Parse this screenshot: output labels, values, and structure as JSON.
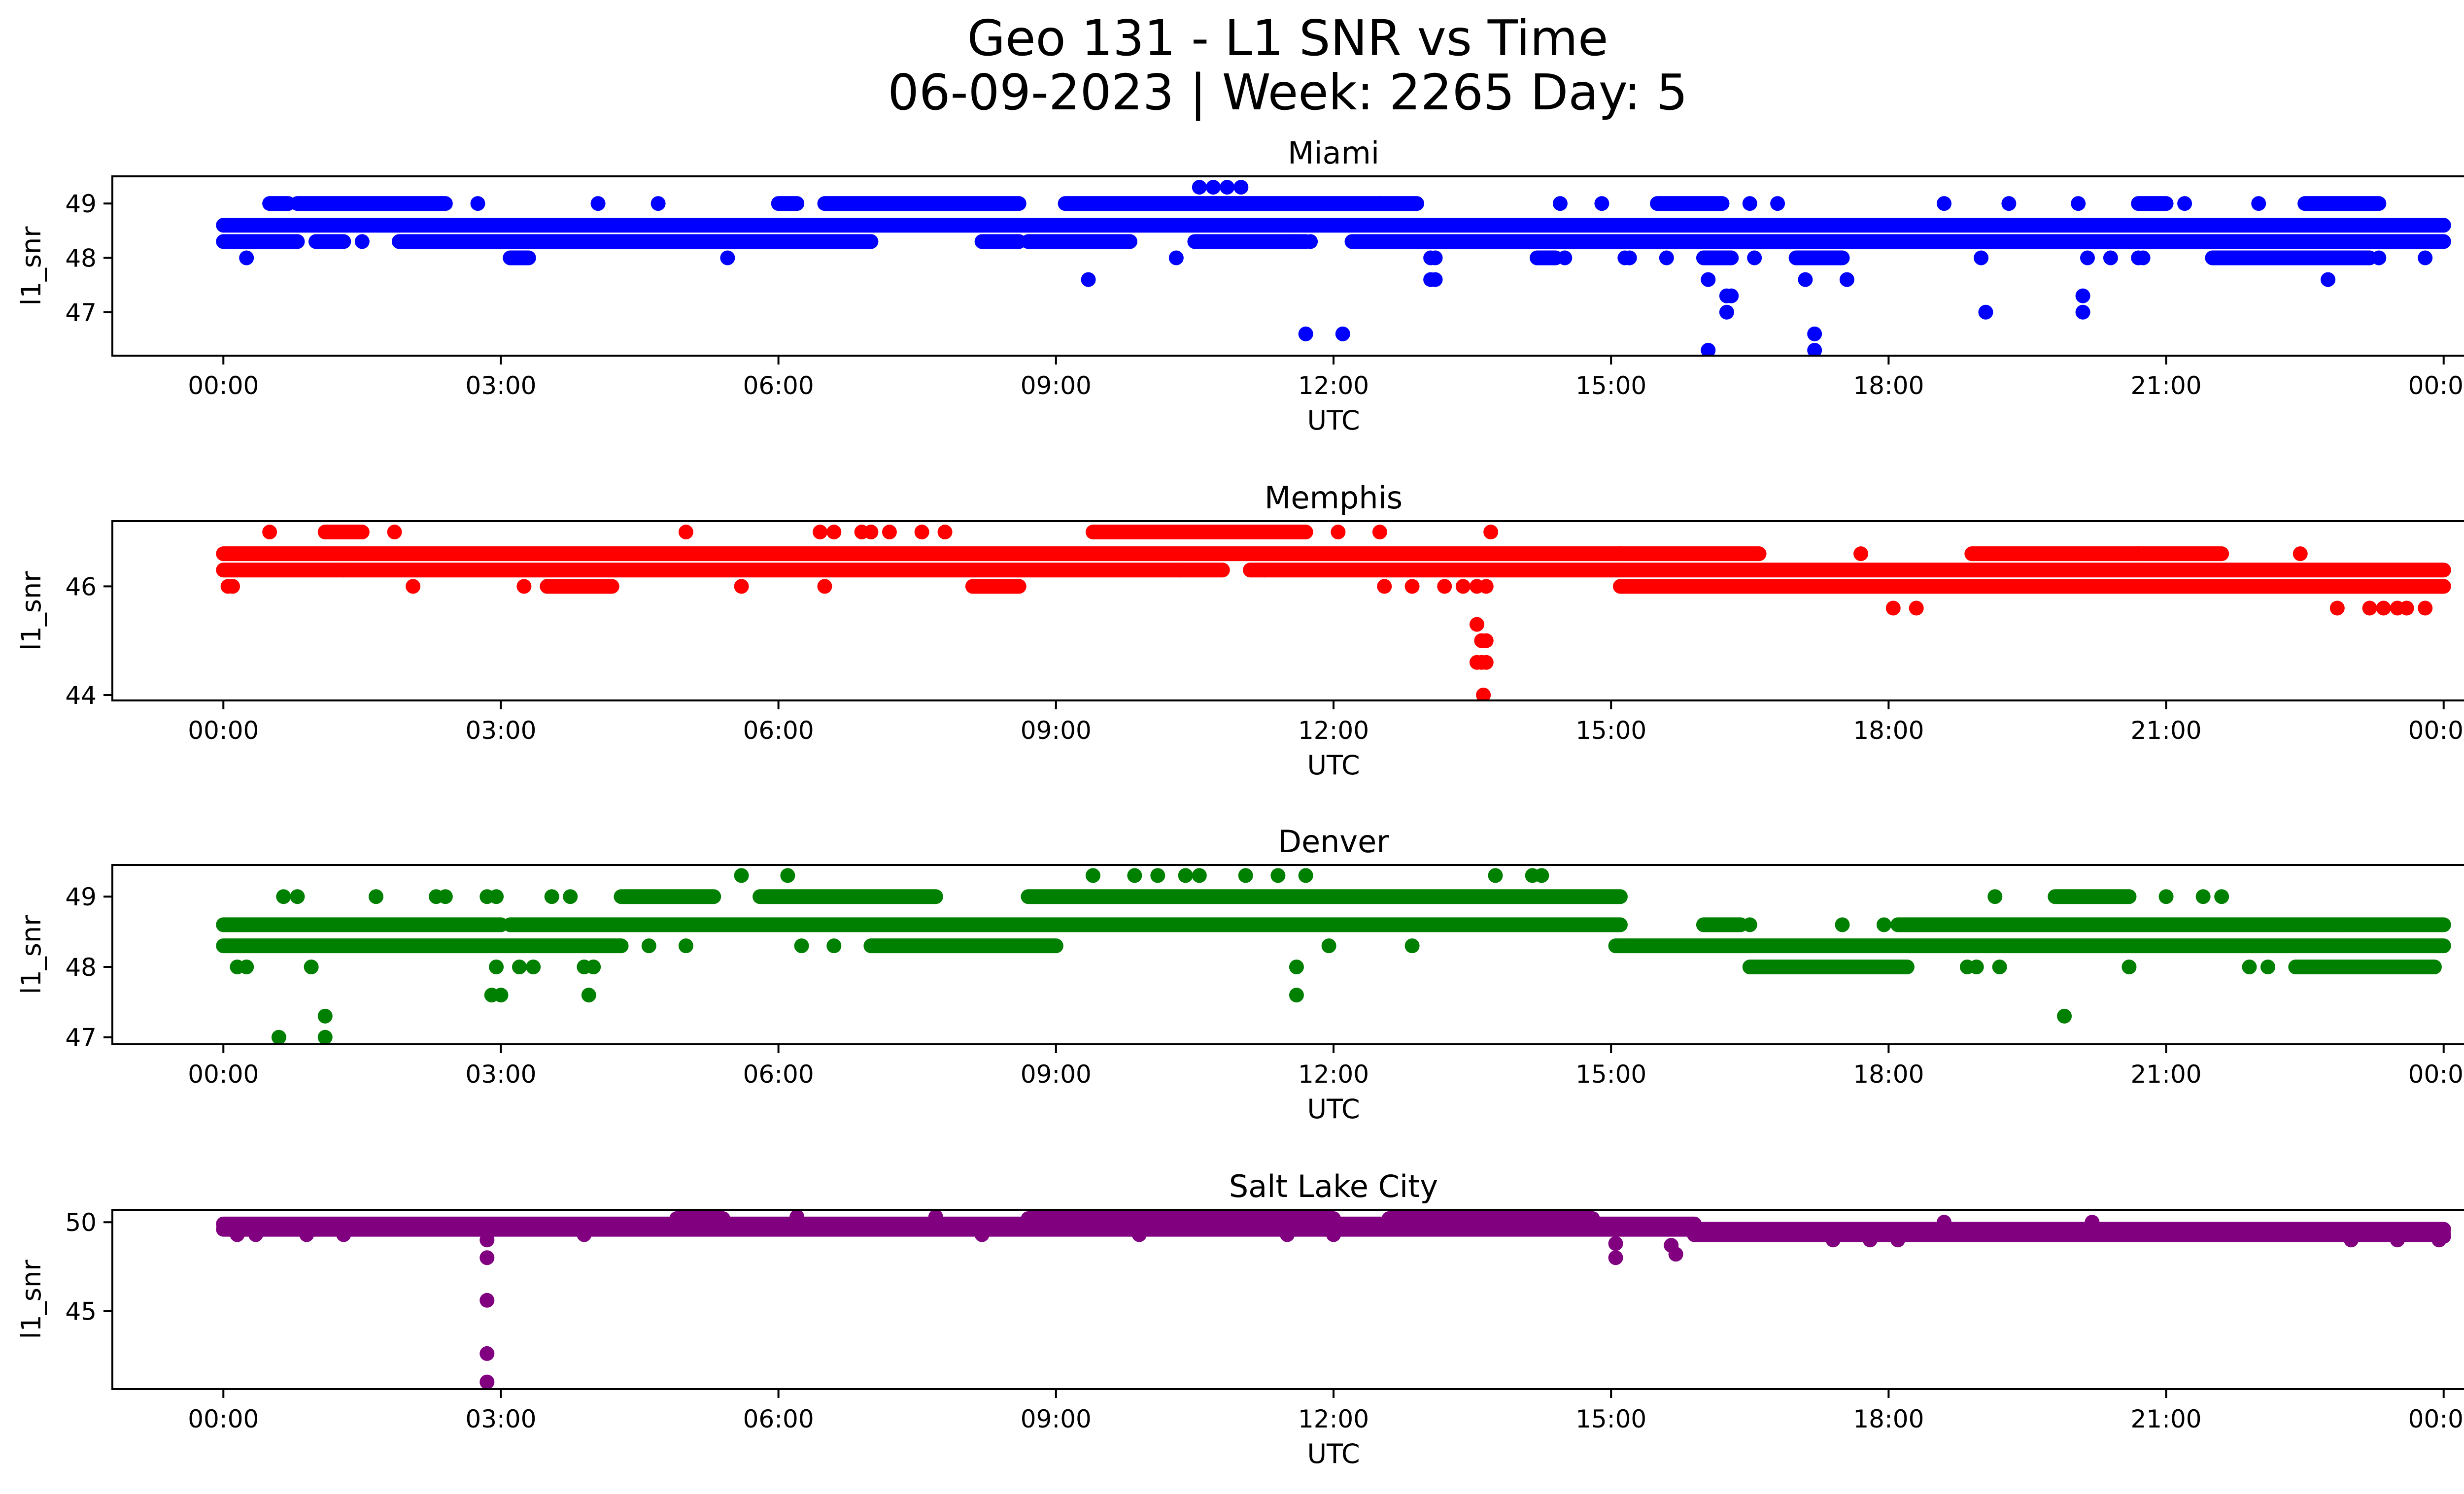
{
  "title_line1": "Geo 131 - L1 SNR vs Time",
  "title_line2": "06-09-2023 | Week: 2265 Day: 5",
  "colors": {
    "Miami": "#0000ff",
    "Memphis": "#ff0000",
    "Denver": "#008000",
    "Salt Lake City": "#800080"
  },
  "chart_data": [
    {
      "type": "scatter",
      "title": "Miami",
      "xlabel": "UTC",
      "ylabel": "l1_snr",
      "x_unit": "hours UTC",
      "x_ticks": [
        "00:00",
        "03:00",
        "06:00",
        "09:00",
        "12:00",
        "15:00",
        "18:00",
        "21:00",
        "00:00"
      ],
      "xlim": [
        -1.2,
        25.2
      ],
      "ylim": [
        46.2,
        49.5
      ],
      "y_ticks": [
        47,
        48,
        49
      ],
      "grid": false,
      "bands": [
        {
          "y": 48.6,
          "x": [
            [
              0,
              24
            ]
          ]
        },
        {
          "y": 48.3,
          "x": [
            [
              0,
              0.8
            ],
            [
              1.0,
              1.3
            ],
            [
              1.9,
              7.0
            ],
            [
              8.2,
              8.6
            ],
            [
              8.7,
              9.8
            ],
            [
              10.5,
              11.7
            ],
            [
              12.2,
              24
            ]
          ]
        },
        {
          "y": 49.0,
          "x": [
            [
              0.5,
              0.7
            ],
            [
              0.8,
              2.4
            ],
            [
              6.0,
              6.2
            ],
            [
              6.5,
              8.6
            ],
            [
              9.1,
              12.5
            ],
            [
              12.5,
              12.9
            ],
            [
              15.5,
              16.2
            ],
            [
              20.7,
              21.0
            ],
            [
              22.5,
              23.3
            ]
          ]
        },
        {
          "y": 48.0,
          "x": [
            [
              3.1,
              3.3
            ],
            [
              14.2,
              14.4
            ],
            [
              16.0,
              16.3
            ],
            [
              17.0,
              17.5
            ],
            [
              21.5,
              22.7
            ],
            [
              22.7,
              23.2
            ]
          ]
        }
      ],
      "points": [
        [
          0.25,
          48.0
        ],
        [
          1.5,
          48.3
        ],
        [
          2.35,
          49.0
        ],
        [
          2.75,
          49.0
        ],
        [
          4.05,
          49.0
        ],
        [
          4.7,
          49.0
        ],
        [
          5.45,
          48.0
        ],
        [
          9.35,
          47.6
        ],
        [
          10.3,
          48.0
        ],
        [
          10.55,
          49.3
        ],
        [
          10.7,
          49.3
        ],
        [
          10.85,
          49.3
        ],
        [
          11.0,
          49.3
        ],
        [
          11.55,
          48.3
        ],
        [
          11.75,
          48.3
        ],
        [
          11.7,
          46.6
        ],
        [
          12.1,
          46.6
        ],
        [
          13.05,
          48.0
        ],
        [
          13.05,
          47.6
        ],
        [
          13.1,
          47.6
        ],
        [
          13.1,
          48.0
        ],
        [
          14.5,
          48.0
        ],
        [
          14.45,
          49.0
        ],
        [
          14.9,
          49.0
        ],
        [
          15.15,
          48.0
        ],
        [
          15.2,
          48.0
        ],
        [
          15.6,
          48.0
        ],
        [
          16.05,
          47.6
        ],
        [
          16.05,
          46.3
        ],
        [
          16.25,
          47.3
        ],
        [
          16.3,
          47.3
        ],
        [
          16.25,
          47.0
        ],
        [
          16.55,
          48.0
        ],
        [
          16.8,
          49.0
        ],
        [
          16.5,
          49.0
        ],
        [
          17.1,
          47.6
        ],
        [
          17.2,
          46.6
        ],
        [
          17.2,
          46.3
        ],
        [
          17.55,
          47.6
        ],
        [
          18.6,
          49.0
        ],
        [
          19.0,
          48.0
        ],
        [
          19.05,
          47.0
        ],
        [
          19.3,
          49.0
        ],
        [
          20.05,
          49.0
        ],
        [
          20.1,
          47.3
        ],
        [
          20.1,
          47.0
        ],
        [
          20.15,
          48.0
        ],
        [
          20.4,
          48.0
        ],
        [
          20.7,
          48.0
        ],
        [
          20.75,
          48.0
        ],
        [
          21.2,
          49.0
        ],
        [
          22.75,
          47.6
        ],
        [
          22.0,
          49.0
        ],
        [
          23.8,
          48.0
        ],
        [
          23.3,
          48.0
        ]
      ]
    },
    {
      "type": "scatter",
      "title": "Memphis",
      "xlabel": "UTC",
      "ylabel": "l1_snr",
      "x_unit": "hours UTC",
      "x_ticks": [
        "00:00",
        "03:00",
        "06:00",
        "09:00",
        "12:00",
        "15:00",
        "18:00",
        "21:00",
        "00:00"
      ],
      "xlim": [
        -1.2,
        25.2
      ],
      "ylim": [
        43.9,
        47.2
      ],
      "y_ticks": [
        44,
        46
      ],
      "grid": false,
      "bands": [
        {
          "y": 46.6,
          "x": [
            [
              0,
              15.1
            ],
            [
              15.1,
              16.6
            ],
            [
              18.9,
              20.7
            ],
            [
              20.7,
              21.6
            ]
          ]
        },
        {
          "y": 46.3,
          "x": [
            [
              0,
              1.3
            ],
            [
              1.3,
              10.8
            ],
            [
              11.1,
              24
            ]
          ]
        },
        {
          "y": 46.0,
          "x": [
            [
              3.5,
              4.2
            ],
            [
              8.1,
              8.6
            ],
            [
              15.1,
              24
            ]
          ]
        },
        {
          "y": 47.0,
          "x": [
            [
              1.1,
              1.5
            ],
            [
              9.4,
              11.7
            ]
          ]
        }
      ],
      "points": [
        [
          0.05,
          46.0
        ],
        [
          0.1,
          46.0
        ],
        [
          0.5,
          47.0
        ],
        [
          1.85,
          47.0
        ],
        [
          2.05,
          46.0
        ],
        [
          3.25,
          46.0
        ],
        [
          5.0,
          47.0
        ],
        [
          5.6,
          46.0
        ],
        [
          6.45,
          47.0
        ],
        [
          6.5,
          46.0
        ],
        [
          6.6,
          47.0
        ],
        [
          6.9,
          47.0
        ],
        [
          7.0,
          47.0
        ],
        [
          7.2,
          47.0
        ],
        [
          7.55,
          47.0
        ],
        [
          7.8,
          47.0
        ],
        [
          10.35,
          46.3
        ],
        [
          11.25,
          46.3
        ],
        [
          12.05,
          47.0
        ],
        [
          12.5,
          47.0
        ],
        [
          12.55,
          46.0
        ],
        [
          12.85,
          46.0
        ],
        [
          13.2,
          46.0
        ],
        [
          13.4,
          46.0
        ],
        [
          13.55,
          46.0
        ],
        [
          13.65,
          46.0
        ],
        [
          13.7,
          47.0
        ],
        [
          13.55,
          45.3
        ],
        [
          13.6,
          45.0
        ],
        [
          13.65,
          45.0
        ],
        [
          13.55,
          44.6
        ],
        [
          13.6,
          44.6
        ],
        [
          13.65,
          44.6
        ],
        [
          13.62,
          44.0
        ],
        [
          17.7,
          46.6
        ],
        [
          18.05,
          45.6
        ],
        [
          18.3,
          45.6
        ],
        [
          22.45,
          46.6
        ],
        [
          22.85,
          45.6
        ],
        [
          23.2,
          45.6
        ],
        [
          23.35,
          45.6
        ],
        [
          23.5,
          45.6
        ],
        [
          23.6,
          45.6
        ],
        [
          23.8,
          45.6
        ]
      ]
    },
    {
      "type": "scatter",
      "title": "Denver",
      "xlabel": "UTC",
      "ylabel": "l1_snr",
      "x_unit": "hours UTC",
      "x_ticks": [
        "00:00",
        "03:00",
        "06:00",
        "09:00",
        "12:00",
        "15:00",
        "18:00",
        "21:00",
        "00:00"
      ],
      "xlim": [
        -1.2,
        25.2
      ],
      "ylim": [
        46.9,
        49.45
      ],
      "y_ticks": [
        47,
        48,
        49
      ],
      "grid": false,
      "bands": [
        {
          "y": 48.6,
          "x": [
            [
              0,
              3.0
            ],
            [
              3.1,
              15.1
            ],
            [
              16.0,
              16.4
            ],
            [
              18.1,
              24
            ]
          ]
        },
        {
          "y": 48.3,
          "x": [
            [
              0,
              4.3
            ],
            [
              7.0,
              9.0
            ],
            [
              15.05,
              24
            ]
          ]
        },
        {
          "y": 49.0,
          "x": [
            [
              4.3,
              5.3
            ],
            [
              5.8,
              7.7
            ],
            [
              8.7,
              15.1
            ],
            [
              19.8,
              20.6
            ]
          ]
        },
        {
          "y": 48.0,
          "x": [
            [
              16.5,
              18.2
            ],
            [
              22.4,
              23.9
            ]
          ]
        }
      ],
      "points": [
        [
          0.15,
          48.0
        ],
        [
          0.25,
          48.0
        ],
        [
          0.6,
          47.0
        ],
        [
          0.65,
          49.0
        ],
        [
          0.8,
          49.0
        ],
        [
          0.95,
          48.0
        ],
        [
          1.1,
          47.3
        ],
        [
          1.1,
          47.0
        ],
        [
          1.65,
          49.0
        ],
        [
          2.3,
          49.0
        ],
        [
          2.4,
          49.0
        ],
        [
          2.85,
          49.0
        ],
        [
          2.95,
          49.0
        ],
        [
          2.9,
          47.6
        ],
        [
          3.0,
          47.6
        ],
        [
          2.95,
          48.0
        ],
        [
          3.2,
          48.0
        ],
        [
          3.35,
          48.0
        ],
        [
          3.55,
          49.0
        ],
        [
          3.75,
          49.0
        ],
        [
          3.9,
          48.0
        ],
        [
          3.95,
          47.6
        ],
        [
          4.0,
          48.0
        ],
        [
          4.6,
          48.3
        ],
        [
          5.0,
          48.3
        ],
        [
          5.6,
          49.3
        ],
        [
          6.1,
          49.3
        ],
        [
          6.25,
          48.3
        ],
        [
          6.6,
          48.3
        ],
        [
          9.4,
          49.3
        ],
        [
          9.85,
          49.3
        ],
        [
          10.1,
          49.3
        ],
        [
          10.4,
          49.3
        ],
        [
          10.55,
          49.3
        ],
        [
          11.05,
          49.3
        ],
        [
          11.4,
          49.3
        ],
        [
          11.7,
          49.3
        ],
        [
          11.6,
          48.0
        ],
        [
          11.6,
          47.6
        ],
        [
          11.95,
          48.3
        ],
        [
          12.85,
          48.3
        ],
        [
          13.75,
          49.3
        ],
        [
          14.15,
          49.3
        ],
        [
          14.25,
          49.3
        ],
        [
          15.2,
          48.3
        ],
        [
          16.5,
          48.6
        ],
        [
          17.5,
          48.6
        ],
        [
          17.95,
          48.6
        ],
        [
          18.25,
          48.6
        ],
        [
          18.85,
          48.0
        ],
        [
          18.95,
          48.0
        ],
        [
          19.2,
          48.0
        ],
        [
          19.15,
          49.0
        ],
        [
          19.9,
          47.3
        ],
        [
          20.6,
          48.0
        ],
        [
          21.0,
          49.0
        ],
        [
          21.4,
          49.0
        ],
        [
          21.6,
          49.0
        ],
        [
          21.9,
          48.0
        ],
        [
          22.1,
          48.0
        ],
        [
          22.85,
          48.6
        ],
        [
          23.3,
          48.6
        ]
      ]
    },
    {
      "type": "scatter",
      "title": "Salt Lake City",
      "xlabel": "UTC",
      "ylabel": "l1_snr",
      "x_unit": "hours UTC",
      "x_ticks": [
        "00:00",
        "03:00",
        "06:00",
        "09:00",
        "12:00",
        "15:00",
        "18:00",
        "21:00",
        "00:00"
      ],
      "xlim": [
        -1.2,
        25.2
      ],
      "ylim": [
        40.6,
        50.7
      ],
      "y_ticks": [
        45,
        50
      ],
      "grid": false,
      "bands": [
        {
          "y": 49.9,
          "x": [
            [
              0,
              15.9
            ]
          ]
        },
        {
          "y": 49.6,
          "x": [
            [
              0,
              24
            ]
          ]
        },
        {
          "y": 49.3,
          "x": [
            [
              15.9,
              24
            ]
          ]
        },
        {
          "y": 50.2,
          "x": [
            [
              4.9,
              5.4
            ],
            [
              8.7,
              12.0
            ],
            [
              12.6,
              14.8
            ]
          ]
        }
      ],
      "points": [
        [
          0.15,
          49.3
        ],
        [
          0.35,
          49.3
        ],
        [
          0.9,
          49.3
        ],
        [
          1.3,
          49.3
        ],
        [
          2.85,
          49.0
        ],
        [
          2.85,
          48.0
        ],
        [
          2.85,
          45.6
        ],
        [
          2.85,
          42.6
        ],
        [
          2.85,
          41.0
        ],
        [
          3.9,
          49.3
        ],
        [
          8.2,
          49.3
        ],
        [
          9.9,
          49.3
        ],
        [
          11.5,
          49.3
        ],
        [
          12.0,
          49.3
        ],
        [
          15.05,
          48.8
        ],
        [
          15.05,
          48.0
        ],
        [
          15.65,
          48.7
        ],
        [
          15.7,
          48.2
        ],
        [
          17.4,
          49.0
        ],
        [
          17.8,
          49.0
        ],
        [
          18.1,
          49.0
        ],
        [
          23.0,
          49.0
        ],
        [
          23.5,
          49.0
        ],
        [
          23.95,
          49.0
        ],
        [
          24.0,
          49.2
        ],
        [
          5.3,
          50.3
        ],
        [
          6.2,
          50.3
        ],
        [
          7.7,
          50.3
        ],
        [
          11.8,
          50.3
        ],
        [
          13.7,
          50.3
        ],
        [
          14.4,
          50.3
        ],
        [
          20.2,
          50.0
        ],
        [
          18.6,
          50.0
        ]
      ]
    }
  ]
}
